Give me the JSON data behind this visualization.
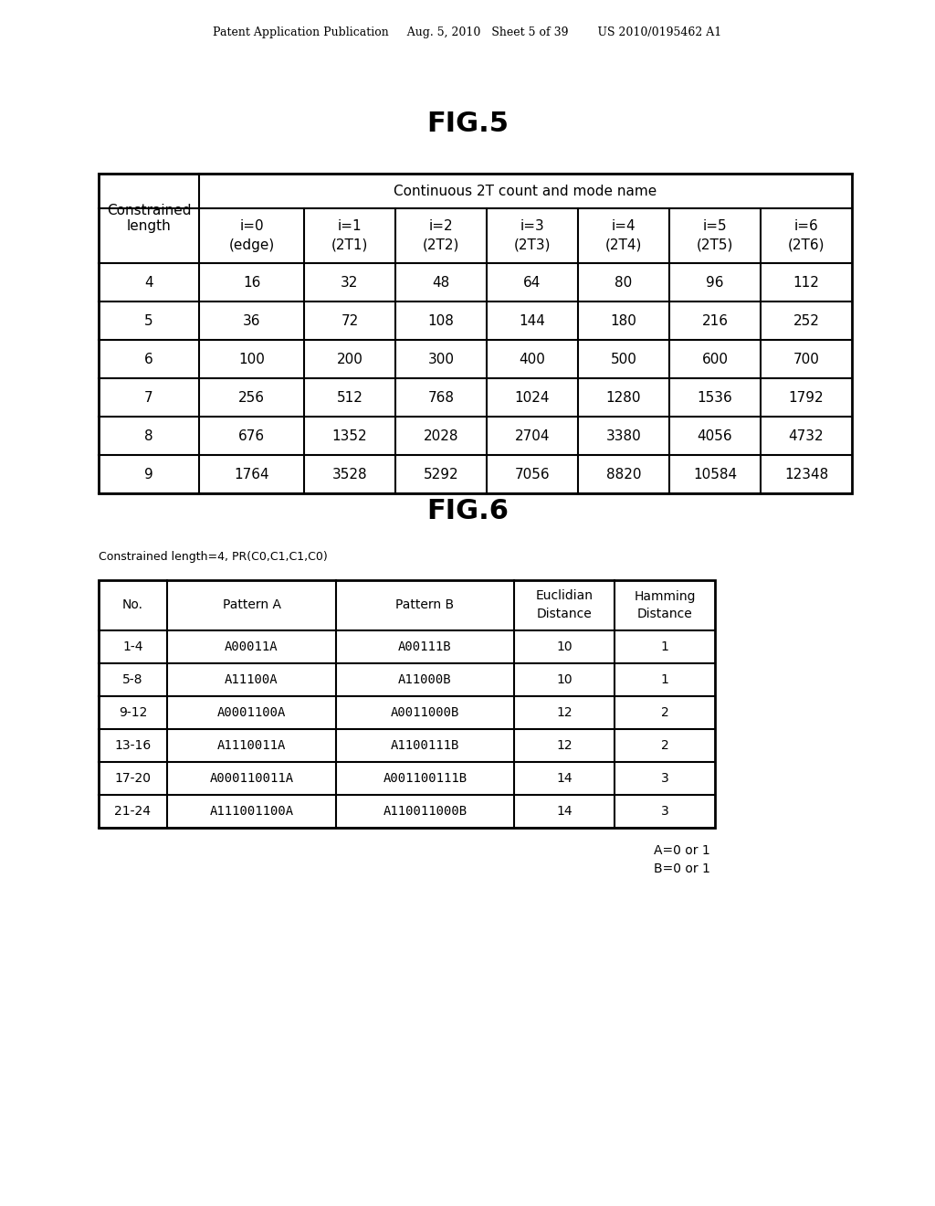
{
  "header_text": "Patent Application Publication     Aug. 5, 2010   Sheet 5 of 39        US 2010/0195462 A1",
  "fig5_title": "FIG.5",
  "fig6_title": "FIG.6",
  "fig5_header_row1": [
    "",
    "Continuous 2T count and mode name"
  ],
  "fig5_header_row2": [
    "Constrained\nlength",
    "i=0\n(edge)",
    "i=1\n(2T1)",
    "i=2\n(2T2)",
    "i=3\n(2T3)",
    "i=4\n(2T4)",
    "i=5\n(2T5)",
    "i=6\n(2T6)"
  ],
  "fig5_data": [
    [
      "4",
      "16",
      "32",
      "48",
      "64",
      "80",
      "96",
      "112"
    ],
    [
      "5",
      "36",
      "72",
      "108",
      "144",
      "180",
      "216",
      "252"
    ],
    [
      "6",
      "100",
      "200",
      "300",
      "400",
      "500",
      "600",
      "700"
    ],
    [
      "7",
      "256",
      "512",
      "768",
      "1024",
      "1280",
      "1536",
      "1792"
    ],
    [
      "8",
      "676",
      "1352",
      "2028",
      "2704",
      "3380",
      "4056",
      "4732"
    ],
    [
      "9",
      "1764",
      "3528",
      "5292",
      "7056",
      "8820",
      "10584",
      "12348"
    ]
  ],
  "fig6_subtitle": "Constrained length=4, PR(C0,C1,C1,C0)",
  "fig6_header": [
    "No.",
    "Pattern A",
    "Pattern B",
    "Euclidian\nDistance",
    "Hamming\nDistance"
  ],
  "fig6_data": [
    [
      "1-4",
      "A00011A",
      "A00111B",
      "10",
      "1"
    ],
    [
      "5-8",
      "A11100A",
      "A11000B",
      "10",
      "1"
    ],
    [
      "9-12",
      "A0001100A",
      "A0011000B",
      "12",
      "2"
    ],
    [
      "13-16",
      "A1110011A",
      "A1100111B",
      "12",
      "2"
    ],
    [
      "17-20",
      "A000110011A",
      "A001100111B",
      "14",
      "3"
    ],
    [
      "21-24",
      "A111001100A",
      "A110011000B",
      "14",
      "3"
    ]
  ],
  "fig6_note1": "A=0 or 1",
  "fig6_note2": "B=0 or 1",
  "bg_color": "#ffffff",
  "text_color": "#000000",
  "border_color": "#000000"
}
